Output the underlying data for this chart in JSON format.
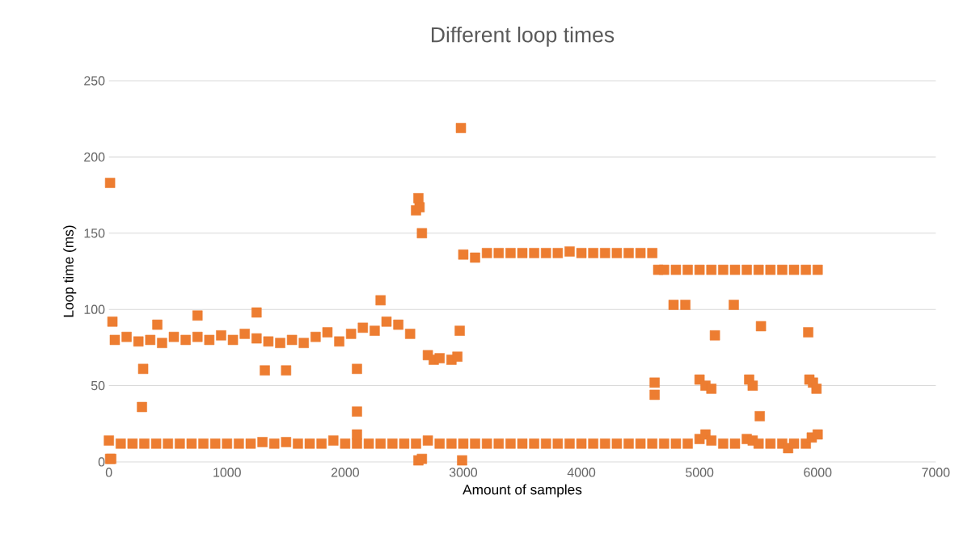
{
  "chart_data": {
    "type": "scatter",
    "title": "Different loop times",
    "xlabel": "Amount of samples",
    "ylabel": "Loop time (ms)",
    "xlim": [
      0,
      7000
    ],
    "ylim": [
      0,
      250
    ],
    "xticks": [
      0,
      1000,
      2000,
      3000,
      4000,
      5000,
      6000,
      7000
    ],
    "yticks": [
      0,
      50,
      100,
      150,
      200,
      250
    ],
    "grid": "y",
    "marker": "square",
    "series": [
      {
        "color": "#ed7d31",
        "x": [
          0,
          100,
          200,
          300,
          400,
          500,
          600,
          700,
          800,
          900,
          1000,
          1100,
          1200,
          1300,
          1400,
          1500,
          1600,
          1700,
          1800,
          1900,
          2000,
          2100,
          2200,
          2300,
          2400,
          2500,
          2600,
          2700,
          2800,
          2900,
          3000,
          3100,
          3200,
          3300,
          3400,
          3500,
          3600,
          3700,
          3800,
          3900,
          4000,
          4100,
          4200,
          4300,
          4400,
          4500,
          4600,
          4700,
          4800,
          4900,
          5000,
          5050,
          5100,
          5200,
          5300,
          5400,
          5450,
          5500,
          5600,
          5700,
          5750,
          5800,
          5900,
          5950,
          6000,
          10,
          20,
          2620,
          2650,
          2990,
          50,
          150,
          250,
          350,
          450,
          550,
          650,
          750,
          850,
          950,
          1050,
          1150,
          1250,
          1350,
          1450,
          1550,
          1650,
          1750,
          1850,
          1950,
          2050,
          2150,
          2250,
          2350,
          2450,
          2550,
          2700,
          2750,
          2800,
          2900,
          2950,
          3000,
          3100,
          3200,
          3300,
          3400,
          3500,
          3600,
          3700,
          3800,
          3900,
          4000,
          4100,
          4200,
          4300,
          4400,
          4500,
          4600,
          4650,
          4700,
          4800,
          4900,
          5000,
          5100,
          5200,
          5300,
          5400,
          5500,
          5600,
          5700,
          5800,
          5900,
          6000,
          10,
          30,
          280,
          290,
          410,
          750,
          1250,
          1320,
          1500,
          2100,
          2100,
          2100,
          2300,
          2600,
          2620,
          2630,
          2650,
          2980,
          2970,
          4620,
          4620,
          4780,
          4880,
          5000,
          5050,
          5100,
          5130,
          5290,
          5420,
          5450,
          5510,
          5520,
          5920,
          5930,
          5960,
          5990
        ],
        "values": [
          14,
          12,
          12,
          12,
          12,
          12,
          12,
          12,
          12,
          12,
          12,
          12,
          12,
          13,
          12,
          13,
          12,
          12,
          12,
          14,
          12,
          12,
          12,
          12,
          12,
          12,
          12,
          14,
          12,
          12,
          12,
          12,
          12,
          12,
          12,
          12,
          12,
          12,
          12,
          12,
          12,
          12,
          12,
          12,
          12,
          12,
          12,
          12,
          12,
          12,
          15,
          18,
          14,
          12,
          12,
          15,
          14,
          12,
          12,
          12,
          9,
          12,
          12,
          16,
          18,
          2,
          2,
          1,
          2,
          1,
          80,
          82,
          79,
          80,
          78,
          82,
          80,
          82,
          80,
          83,
          80,
          84,
          81,
          79,
          78,
          80,
          78,
          82,
          85,
          79,
          84,
          88,
          86,
          92,
          90,
          84,
          70,
          67,
          68,
          67,
          69,
          136,
          134,
          137,
          137,
          137,
          137,
          137,
          137,
          137,
          138,
          137,
          137,
          137,
          137,
          137,
          137,
          137,
          126,
          126,
          126,
          126,
          126,
          126,
          126,
          126,
          126,
          126,
          126,
          126,
          126,
          126,
          126,
          183,
          92,
          36,
          61,
          90,
          96,
          98,
          60,
          60,
          61,
          33,
          18,
          106,
          165,
          173,
          167,
          150,
          219,
          86,
          44,
          52,
          103,
          103,
          54,
          50,
          48,
          83,
          103,
          54,
          50,
          30,
          89,
          85,
          54,
          52,
          48
        ]
      }
    ]
  }
}
